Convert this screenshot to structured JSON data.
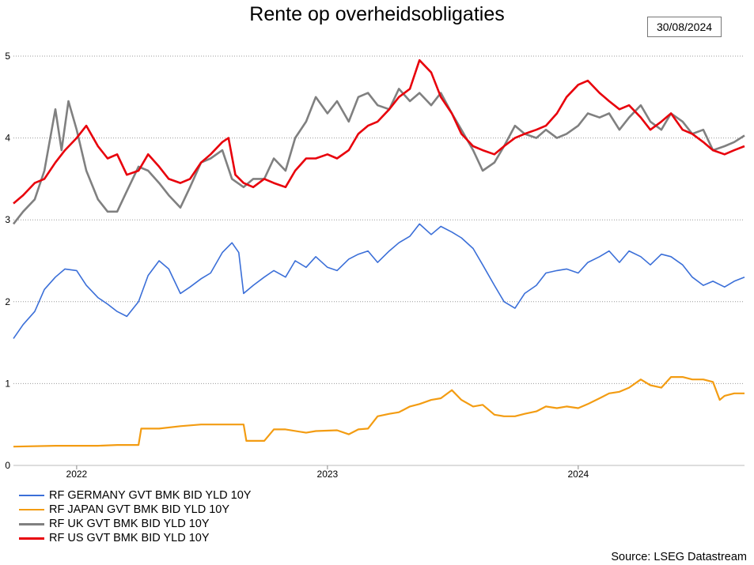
{
  "chart_data": {
    "type": "line",
    "title": "Rente op overheidsobligaties",
    "date_label": "30/08/2024",
    "source": "Source: LSEG Datastream",
    "x_start": "2021-10-01",
    "x_end": "2024-08-30",
    "x_ticks": [
      {
        "label": "2022",
        "date": "2022-01-01"
      },
      {
        "label": "2023",
        "date": "2023-01-01"
      },
      {
        "label": "2024",
        "date": "2024-01-01"
      }
    ],
    "y_ticks": [
      "0",
      "1",
      "2",
      "3",
      "4",
      "5"
    ],
    "ylim": [
      0,
      5
    ],
    "grid": "horizontal dotted",
    "legend_position": "bottom-left",
    "series": [
      {
        "name": "RF GERMANY GVT BMK BID YLD 10Y",
        "color": "#3b6fd8",
        "points": [
          [
            "2021-10-01",
            1.55
          ],
          [
            "2021-10-15",
            1.72
          ],
          [
            "2021-11-01",
            1.88
          ],
          [
            "2021-11-15",
            2.15
          ],
          [
            "2021-12-01",
            2.3
          ],
          [
            "2021-12-15",
            2.4
          ],
          [
            "2022-01-01",
            2.38
          ],
          [
            "2022-01-15",
            2.2
          ],
          [
            "2022-02-01",
            2.05
          ],
          [
            "2022-02-15",
            1.97
          ],
          [
            "2022-03-01",
            1.88
          ],
          [
            "2022-03-15",
            1.82
          ],
          [
            "2022-04-01",
            2.0
          ],
          [
            "2022-04-15",
            2.32
          ],
          [
            "2022-05-01",
            2.5
          ],
          [
            "2022-05-15",
            2.4
          ],
          [
            "2022-06-01",
            2.1
          ],
          [
            "2022-06-15",
            2.18
          ],
          [
            "2022-07-01",
            2.28
          ],
          [
            "2022-07-15",
            2.35
          ],
          [
            "2022-08-01",
            2.6
          ],
          [
            "2022-08-15",
            2.72
          ],
          [
            "2022-08-25",
            2.6
          ],
          [
            "2022-09-01",
            2.1
          ],
          [
            "2022-09-15",
            2.2
          ],
          [
            "2022-10-01",
            2.3
          ],
          [
            "2022-10-15",
            2.38
          ],
          [
            "2022-11-01",
            2.3
          ],
          [
            "2022-11-15",
            2.5
          ],
          [
            "2022-12-01",
            2.42
          ],
          [
            "2022-12-15",
            2.55
          ],
          [
            "2023-01-01",
            2.42
          ],
          [
            "2023-01-15",
            2.38
          ],
          [
            "2023-02-01",
            2.52
          ],
          [
            "2023-02-15",
            2.58
          ],
          [
            "2023-03-01",
            2.62
          ],
          [
            "2023-03-15",
            2.48
          ],
          [
            "2023-04-01",
            2.62
          ],
          [
            "2023-04-15",
            2.72
          ],
          [
            "2023-05-01",
            2.8
          ],
          [
            "2023-05-15",
            2.95
          ],
          [
            "2023-06-01",
            2.82
          ],
          [
            "2023-06-15",
            2.92
          ],
          [
            "2023-07-01",
            2.85
          ],
          [
            "2023-07-15",
            2.78
          ],
          [
            "2023-08-01",
            2.65
          ],
          [
            "2023-08-15",
            2.45
          ],
          [
            "2023-09-01",
            2.2
          ],
          [
            "2023-09-15",
            2.0
          ],
          [
            "2023-10-01",
            1.92
          ],
          [
            "2023-10-15",
            2.1
          ],
          [
            "2023-11-01",
            2.2
          ],
          [
            "2023-11-15",
            2.35
          ],
          [
            "2023-12-01",
            2.38
          ],
          [
            "2023-12-15",
            2.4
          ],
          [
            "2024-01-01",
            2.35
          ],
          [
            "2024-01-15",
            2.48
          ],
          [
            "2024-02-01",
            2.55
          ],
          [
            "2024-02-15",
            2.62
          ],
          [
            "2024-03-01",
            2.48
          ],
          [
            "2024-03-15",
            2.62
          ],
          [
            "2024-04-01",
            2.55
          ],
          [
            "2024-04-15",
            2.45
          ],
          [
            "2024-05-01",
            2.58
          ],
          [
            "2024-05-15",
            2.55
          ],
          [
            "2024-06-01",
            2.45
          ],
          [
            "2024-06-15",
            2.3
          ],
          [
            "2024-07-01",
            2.2
          ],
          [
            "2024-07-15",
            2.25
          ],
          [
            "2024-08-01",
            2.18
          ],
          [
            "2024-08-15",
            2.25
          ],
          [
            "2024-08-30",
            2.3
          ]
        ]
      },
      {
        "name": "RF JAPAN GVT BMK BID YLD 10Y",
        "color": "#f39c12",
        "points": [
          [
            "2021-10-01",
            0.23
          ],
          [
            "2021-12-01",
            0.24
          ],
          [
            "2022-02-01",
            0.24
          ],
          [
            "2022-03-01",
            0.25
          ],
          [
            "2022-04-01",
            0.25
          ],
          [
            "2022-04-05",
            0.45
          ],
          [
            "2022-05-01",
            0.45
          ],
          [
            "2022-06-01",
            0.48
          ],
          [
            "2022-07-01",
            0.5
          ],
          [
            "2022-08-01",
            0.5
          ],
          [
            "2022-09-01",
            0.5
          ],
          [
            "2022-09-05",
            0.3
          ],
          [
            "2022-10-01",
            0.3
          ],
          [
            "2022-10-15",
            0.44
          ],
          [
            "2022-11-01",
            0.44
          ],
          [
            "2022-12-01",
            0.4
          ],
          [
            "2022-12-15",
            0.42
          ],
          [
            "2023-01-15",
            0.43
          ],
          [
            "2023-02-01",
            0.38
          ],
          [
            "2023-02-15",
            0.44
          ],
          [
            "2023-03-01",
            0.45
          ],
          [
            "2023-03-15",
            0.6
          ],
          [
            "2023-04-01",
            0.63
          ],
          [
            "2023-04-15",
            0.65
          ],
          [
            "2023-05-01",
            0.72
          ],
          [
            "2023-05-15",
            0.75
          ],
          [
            "2023-06-01",
            0.8
          ],
          [
            "2023-06-15",
            0.82
          ],
          [
            "2023-07-01",
            0.92
          ],
          [
            "2023-07-15",
            0.8
          ],
          [
            "2023-08-01",
            0.72
          ],
          [
            "2023-08-15",
            0.74
          ],
          [
            "2023-09-01",
            0.62
          ],
          [
            "2023-09-15",
            0.6
          ],
          [
            "2023-10-01",
            0.6
          ],
          [
            "2023-10-15",
            0.63
          ],
          [
            "2023-11-01",
            0.66
          ],
          [
            "2023-11-15",
            0.72
          ],
          [
            "2023-12-01",
            0.7
          ],
          [
            "2023-12-15",
            0.72
          ],
          [
            "2024-01-01",
            0.7
          ],
          [
            "2024-01-15",
            0.75
          ],
          [
            "2024-02-01",
            0.82
          ],
          [
            "2024-02-15",
            0.88
          ],
          [
            "2024-03-01",
            0.9
          ],
          [
            "2024-03-15",
            0.95
          ],
          [
            "2024-04-01",
            1.05
          ],
          [
            "2024-04-15",
            0.98
          ],
          [
            "2024-05-01",
            0.95
          ],
          [
            "2024-05-15",
            1.08
          ],
          [
            "2024-06-01",
            1.08
          ],
          [
            "2024-06-15",
            1.05
          ],
          [
            "2024-07-01",
            1.05
          ],
          [
            "2024-07-15",
            1.02
          ],
          [
            "2024-07-25",
            0.8
          ],
          [
            "2024-08-01",
            0.85
          ],
          [
            "2024-08-15",
            0.88
          ],
          [
            "2024-08-30",
            0.88
          ]
        ]
      },
      {
        "name": "RF UK GVT BMK BID YLD 10Y",
        "color": "#808080",
        "points": [
          [
            "2021-10-01",
            2.95
          ],
          [
            "2021-10-15",
            3.1
          ],
          [
            "2021-11-01",
            3.25
          ],
          [
            "2021-11-15",
            3.6
          ],
          [
            "2021-12-01",
            4.35
          ],
          [
            "2021-12-10",
            3.85
          ],
          [
            "2021-12-20",
            4.45
          ],
          [
            "2022-01-01",
            4.1
          ],
          [
            "2022-01-15",
            3.6
          ],
          [
            "2022-02-01",
            3.25
          ],
          [
            "2022-02-15",
            3.1
          ],
          [
            "2022-03-01",
            3.1
          ],
          [
            "2022-03-15",
            3.35
          ],
          [
            "2022-04-01",
            3.65
          ],
          [
            "2022-04-15",
            3.6
          ],
          [
            "2022-05-01",
            3.45
          ],
          [
            "2022-05-15",
            3.3
          ],
          [
            "2022-06-01",
            3.15
          ],
          [
            "2022-06-15",
            3.4
          ],
          [
            "2022-07-01",
            3.7
          ],
          [
            "2022-07-15",
            3.75
          ],
          [
            "2022-08-01",
            3.85
          ],
          [
            "2022-08-15",
            3.5
          ],
          [
            "2022-09-01",
            3.4
          ],
          [
            "2022-09-15",
            3.5
          ],
          [
            "2022-10-01",
            3.5
          ],
          [
            "2022-10-15",
            3.75
          ],
          [
            "2022-11-01",
            3.6
          ],
          [
            "2022-11-15",
            4.0
          ],
          [
            "2022-12-01",
            4.2
          ],
          [
            "2022-12-15",
            4.5
          ],
          [
            "2023-01-01",
            4.3
          ],
          [
            "2023-01-15",
            4.45
          ],
          [
            "2023-02-01",
            4.2
          ],
          [
            "2023-02-15",
            4.5
          ],
          [
            "2023-03-01",
            4.55
          ],
          [
            "2023-03-15",
            4.4
          ],
          [
            "2023-04-01",
            4.35
          ],
          [
            "2023-04-15",
            4.6
          ],
          [
            "2023-05-01",
            4.45
          ],
          [
            "2023-05-15",
            4.55
          ],
          [
            "2023-06-01",
            4.4
          ],
          [
            "2023-06-15",
            4.55
          ],
          [
            "2023-07-01",
            4.3
          ],
          [
            "2023-07-15",
            4.1
          ],
          [
            "2023-08-01",
            3.85
          ],
          [
            "2023-08-15",
            3.6
          ],
          [
            "2023-09-01",
            3.7
          ],
          [
            "2023-09-15",
            3.9
          ],
          [
            "2023-10-01",
            4.15
          ],
          [
            "2023-10-15",
            4.05
          ],
          [
            "2023-11-01",
            4.0
          ],
          [
            "2023-11-15",
            4.1
          ],
          [
            "2023-12-01",
            4.0
          ],
          [
            "2023-12-15",
            4.05
          ],
          [
            "2024-01-01",
            4.15
          ],
          [
            "2024-01-15",
            4.3
          ],
          [
            "2024-02-01",
            4.25
          ],
          [
            "2024-02-15",
            4.3
          ],
          [
            "2024-03-01",
            4.1
          ],
          [
            "2024-03-15",
            4.25
          ],
          [
            "2024-04-01",
            4.4
          ],
          [
            "2024-04-15",
            4.2
          ],
          [
            "2024-05-01",
            4.1
          ],
          [
            "2024-05-15",
            4.3
          ],
          [
            "2024-06-01",
            4.2
          ],
          [
            "2024-06-15",
            4.05
          ],
          [
            "2024-07-01",
            4.1
          ],
          [
            "2024-07-15",
            3.85
          ],
          [
            "2024-08-01",
            3.9
          ],
          [
            "2024-08-15",
            3.95
          ],
          [
            "2024-08-30",
            4.03
          ]
        ]
      },
      {
        "name": "RF US GVT BMK BID YLD 10Y",
        "color": "#e8000b",
        "points": [
          [
            "2021-10-01",
            3.2
          ],
          [
            "2021-10-15",
            3.3
          ],
          [
            "2021-11-01",
            3.45
          ],
          [
            "2021-11-15",
            3.5
          ],
          [
            "2021-12-01",
            3.7
          ],
          [
            "2021-12-15",
            3.85
          ],
          [
            "2022-01-01",
            4.0
          ],
          [
            "2022-01-15",
            4.15
          ],
          [
            "2022-02-01",
            3.9
          ],
          [
            "2022-02-15",
            3.75
          ],
          [
            "2022-03-01",
            3.8
          ],
          [
            "2022-03-15",
            3.55
          ],
          [
            "2022-04-01",
            3.6
          ],
          [
            "2022-04-15",
            3.8
          ],
          [
            "2022-05-01",
            3.65
          ],
          [
            "2022-05-15",
            3.5
          ],
          [
            "2022-06-01",
            3.45
          ],
          [
            "2022-06-15",
            3.5
          ],
          [
            "2022-07-01",
            3.7
          ],
          [
            "2022-07-15",
            3.8
          ],
          [
            "2022-08-01",
            3.95
          ],
          [
            "2022-08-10",
            4.0
          ],
          [
            "2022-08-20",
            3.55
          ],
          [
            "2022-09-01",
            3.45
          ],
          [
            "2022-09-15",
            3.4
          ],
          [
            "2022-10-01",
            3.5
          ],
          [
            "2022-10-15",
            3.45
          ],
          [
            "2022-11-01",
            3.4
          ],
          [
            "2022-11-15",
            3.6
          ],
          [
            "2022-12-01",
            3.75
          ],
          [
            "2022-12-15",
            3.75
          ],
          [
            "2023-01-01",
            3.8
          ],
          [
            "2023-01-15",
            3.75
          ],
          [
            "2023-02-01",
            3.85
          ],
          [
            "2023-02-15",
            4.05
          ],
          [
            "2023-03-01",
            4.15
          ],
          [
            "2023-03-15",
            4.2
          ],
          [
            "2023-04-01",
            4.35
          ],
          [
            "2023-04-15",
            4.5
          ],
          [
            "2023-05-01",
            4.6
          ],
          [
            "2023-05-15",
            4.95
          ],
          [
            "2023-06-01",
            4.8
          ],
          [
            "2023-06-15",
            4.5
          ],
          [
            "2023-07-01",
            4.3
          ],
          [
            "2023-07-15",
            4.05
          ],
          [
            "2023-08-01",
            3.9
          ],
          [
            "2023-08-15",
            3.85
          ],
          [
            "2023-09-01",
            3.8
          ],
          [
            "2023-09-15",
            3.9
          ],
          [
            "2023-10-01",
            4.0
          ],
          [
            "2023-10-15",
            4.05
          ],
          [
            "2023-11-01",
            4.1
          ],
          [
            "2023-11-15",
            4.15
          ],
          [
            "2023-12-01",
            4.3
          ],
          [
            "2023-12-15",
            4.5
          ],
          [
            "2024-01-01",
            4.65
          ],
          [
            "2024-01-15",
            4.7
          ],
          [
            "2024-02-01",
            4.55
          ],
          [
            "2024-02-15",
            4.45
          ],
          [
            "2024-03-01",
            4.35
          ],
          [
            "2024-03-15",
            4.4
          ],
          [
            "2024-04-01",
            4.25
          ],
          [
            "2024-04-15",
            4.1
          ],
          [
            "2024-05-01",
            4.2
          ],
          [
            "2024-05-15",
            4.3
          ],
          [
            "2024-06-01",
            4.1
          ],
          [
            "2024-06-15",
            4.05
          ],
          [
            "2024-07-01",
            3.95
          ],
          [
            "2024-07-15",
            3.85
          ],
          [
            "2024-08-01",
            3.8
          ],
          [
            "2024-08-15",
            3.85
          ],
          [
            "2024-08-30",
            3.9
          ]
        ]
      }
    ]
  }
}
